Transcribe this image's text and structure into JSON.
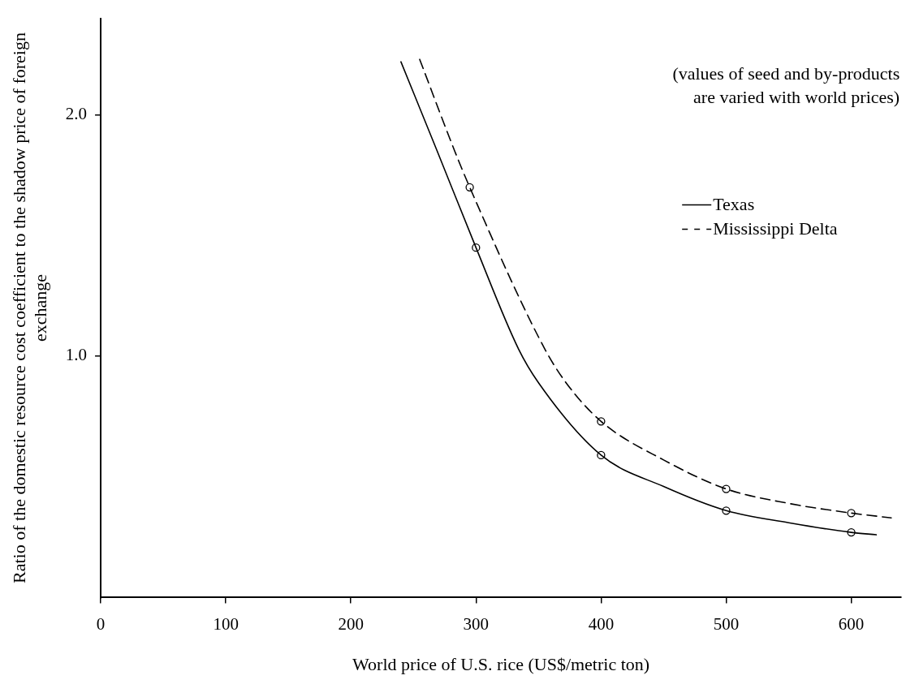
{
  "chart_data": {
    "type": "line",
    "xlabel": "World price of U.S. rice (US$/metric ton)",
    "ylabel": "Ratio of the domestic resource cost coefficient to the shadow price of foreign exchange",
    "annotations": [
      "(values of seed and by-products\nare varied with world prices)"
    ],
    "xlim": [
      0,
      640
    ],
    "xticks": [
      0,
      100,
      200,
      300,
      400,
      500,
      600
    ],
    "ylim": [
      0,
      2.4
    ],
    "yticks": [
      {
        "value": 1,
        "label": "1.0"
      },
      {
        "value": 2,
        "label": "2.0"
      }
    ],
    "grid": false,
    "legend": "right",
    "series": [
      {
        "name": "Texas",
        "color": "#000000",
        "line_style": "solid",
        "marker": "none",
        "x": [
          240,
          269,
          300,
          334,
          350,
          400,
          450,
          500,
          550,
          600,
          620
        ],
        "values": [
          2.22,
          1.85,
          1.45,
          1.03,
          0.89,
          0.59,
          0.46,
          0.36,
          0.31,
          0.27,
          0.26
        ]
      },
      {
        "name": "Mississippi Delta",
        "color": "#000000",
        "line_style": "dashed",
        "marker": "none",
        "x": [
          255,
          283,
          295,
          355,
          372,
          400,
          450,
          500,
          550,
          600,
          632
        ],
        "values": [
          2.23,
          1.85,
          1.7,
          1.03,
          0.89,
          0.73,
          0.57,
          0.45,
          0.39,
          0.35,
          0.33
        ]
      },
      {
        "type": "scatter",
        "color": "#000000",
        "marker": "circle",
        "x": [
          300,
          400,
          500,
          600
        ],
        "values": [
          1.45,
          0.59,
          0.36,
          0.27
        ]
      },
      {
        "type": "scatter",
        "color": "#000000",
        "marker": "circle",
        "x": [
          295,
          400,
          500,
          600
        ],
        "values": [
          1.7,
          0.73,
          0.45,
          0.35
        ]
      }
    ]
  }
}
